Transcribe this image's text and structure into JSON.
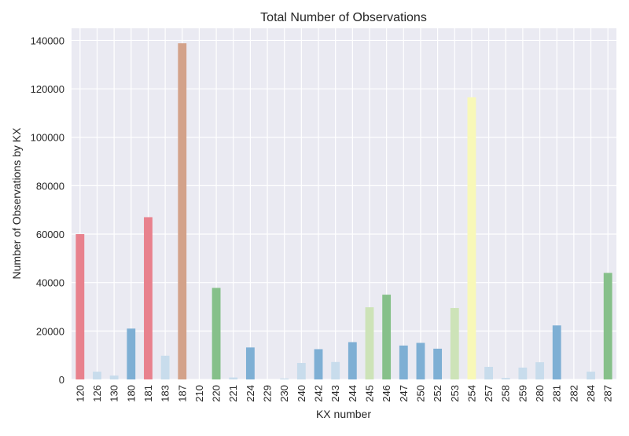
{
  "chart_data": {
    "type": "bar",
    "title": "Total Number of Observations",
    "xlabel": "KX number",
    "ylabel": "Number of Observations by KX",
    "ylim": [
      0,
      145000
    ],
    "yticks": [
      0,
      20000,
      40000,
      60000,
      80000,
      100000,
      120000,
      140000
    ],
    "grid": true,
    "background": "#eaeaf2",
    "categories": [
      "120",
      "126",
      "130",
      "180",
      "181",
      "183",
      "187",
      "210",
      "220",
      "221",
      "224",
      "229",
      "230",
      "240",
      "242",
      "243",
      "244",
      "245",
      "246",
      "247",
      "250",
      "252",
      "253",
      "254",
      "257",
      "258",
      "259",
      "280",
      "281",
      "282",
      "284",
      "287"
    ],
    "values": [
      60000,
      3200,
      1600,
      21000,
      67000,
      9800,
      138800,
      0,
      37800,
      800,
      13200,
      0,
      400,
      6800,
      12500,
      7200,
      15400,
      29800,
      35000,
      14000,
      15100,
      12700,
      29500,
      116500,
      5200,
      600,
      4900,
      7100,
      22300,
      0,
      3200,
      44000
    ],
    "colors": [
      "#e8818d",
      "#c8dcec",
      "#c8dcec",
      "#7eafd4",
      "#e8818d",
      "#c8dcec",
      "#d3a28a",
      "#c8dcec",
      "#86c08a",
      "#c8dcec",
      "#7eafd4",
      "#c8dcec",
      "#c8dcec",
      "#c8dcec",
      "#7eafd4",
      "#c8dcec",
      "#7eafd4",
      "#cde3b8",
      "#86c08a",
      "#7eafd4",
      "#7eafd4",
      "#7eafd4",
      "#cde3b8",
      "#f8f8b8",
      "#c8dcec",
      "#c8dcec",
      "#c8dcec",
      "#c8dcec",
      "#7eafd4",
      "#c8dcec",
      "#c8dcec",
      "#86c08a"
    ]
  }
}
